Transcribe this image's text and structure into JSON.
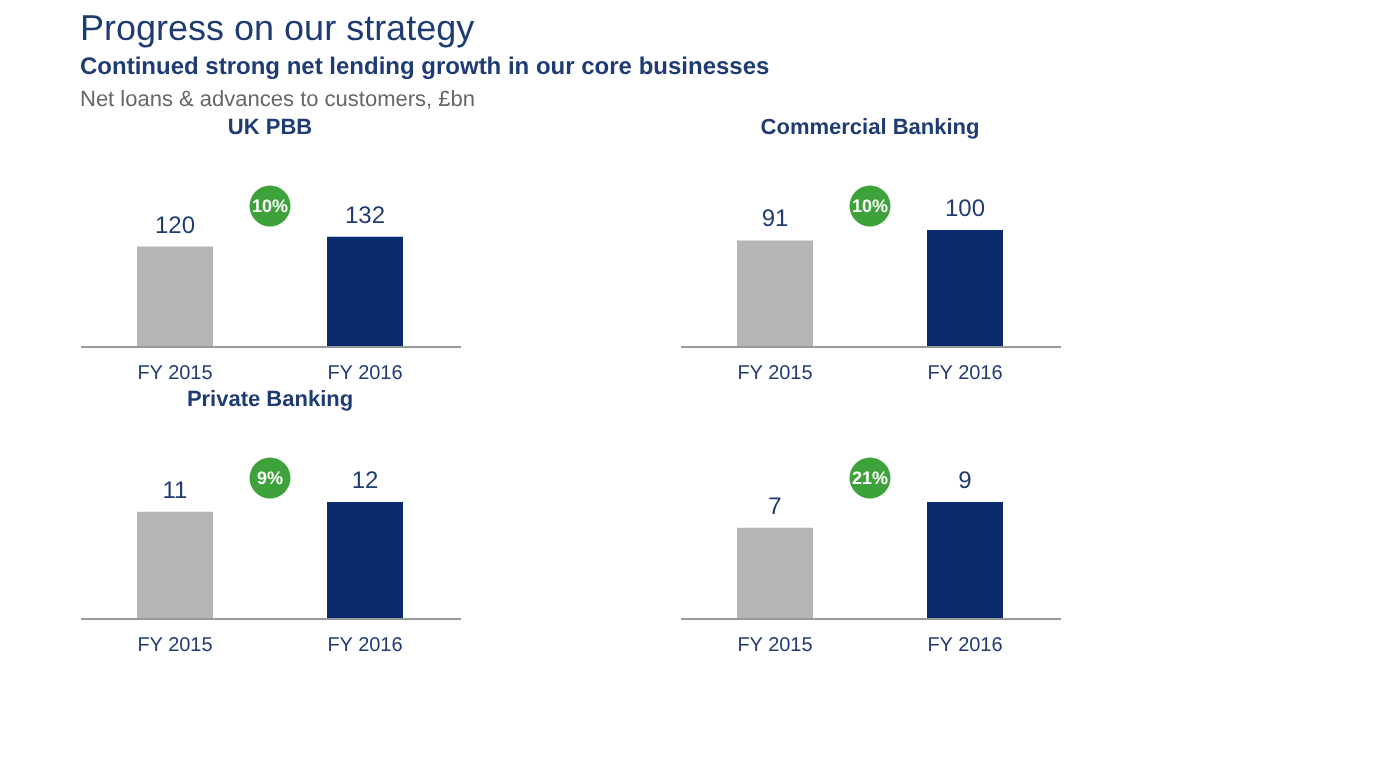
{
  "chart_data": [
    {
      "type": "bar",
      "title": "UK PBB",
      "categories": [
        "FY 2015",
        "FY 2016"
      ],
      "values": [
        120,
        132
      ],
      "colors": [
        "#b5b5b5",
        "#0c2a6e"
      ],
      "data_labels": true,
      "annotations": [
        "Progress on our strategy",
        "Continued strong net lending growth in our core businesses",
        "Net loans & advances to customers, £bn",
        "10%"
      ]
    },
    {
      "type": "bar",
      "title": "Commercial Banking",
      "categories": [
        "FY 2015",
        "FY 2016"
      ],
      "values": [
        91,
        100
      ],
      "colors": [
        "#b5b5b5",
        "#0c2a6e"
      ],
      "data_labels": true,
      "annotations": [
        "10%"
      ]
    },
    {
      "type": "bar",
      "title": "Private Banking",
      "categories": [
        "FY 2015",
        "FY 2016"
      ],
      "values": [
        11,
        12
      ],
      "colors": [
        "#b5b5b5",
        "#0c2a6e"
      ],
      "data_labels": true,
      "annotations": [
        "9%"
      ]
    },
    {
      "type": "bar",
      "categories": [
        "FY 2015",
        "FY 2016"
      ],
      "values": [
        7,
        9
      ],
      "colors": [
        "#b5b5b5",
        "#0c2a6e"
      ],
      "data_labels": true,
      "annotations": [
        "21%"
      ]
    }
  ]
}
